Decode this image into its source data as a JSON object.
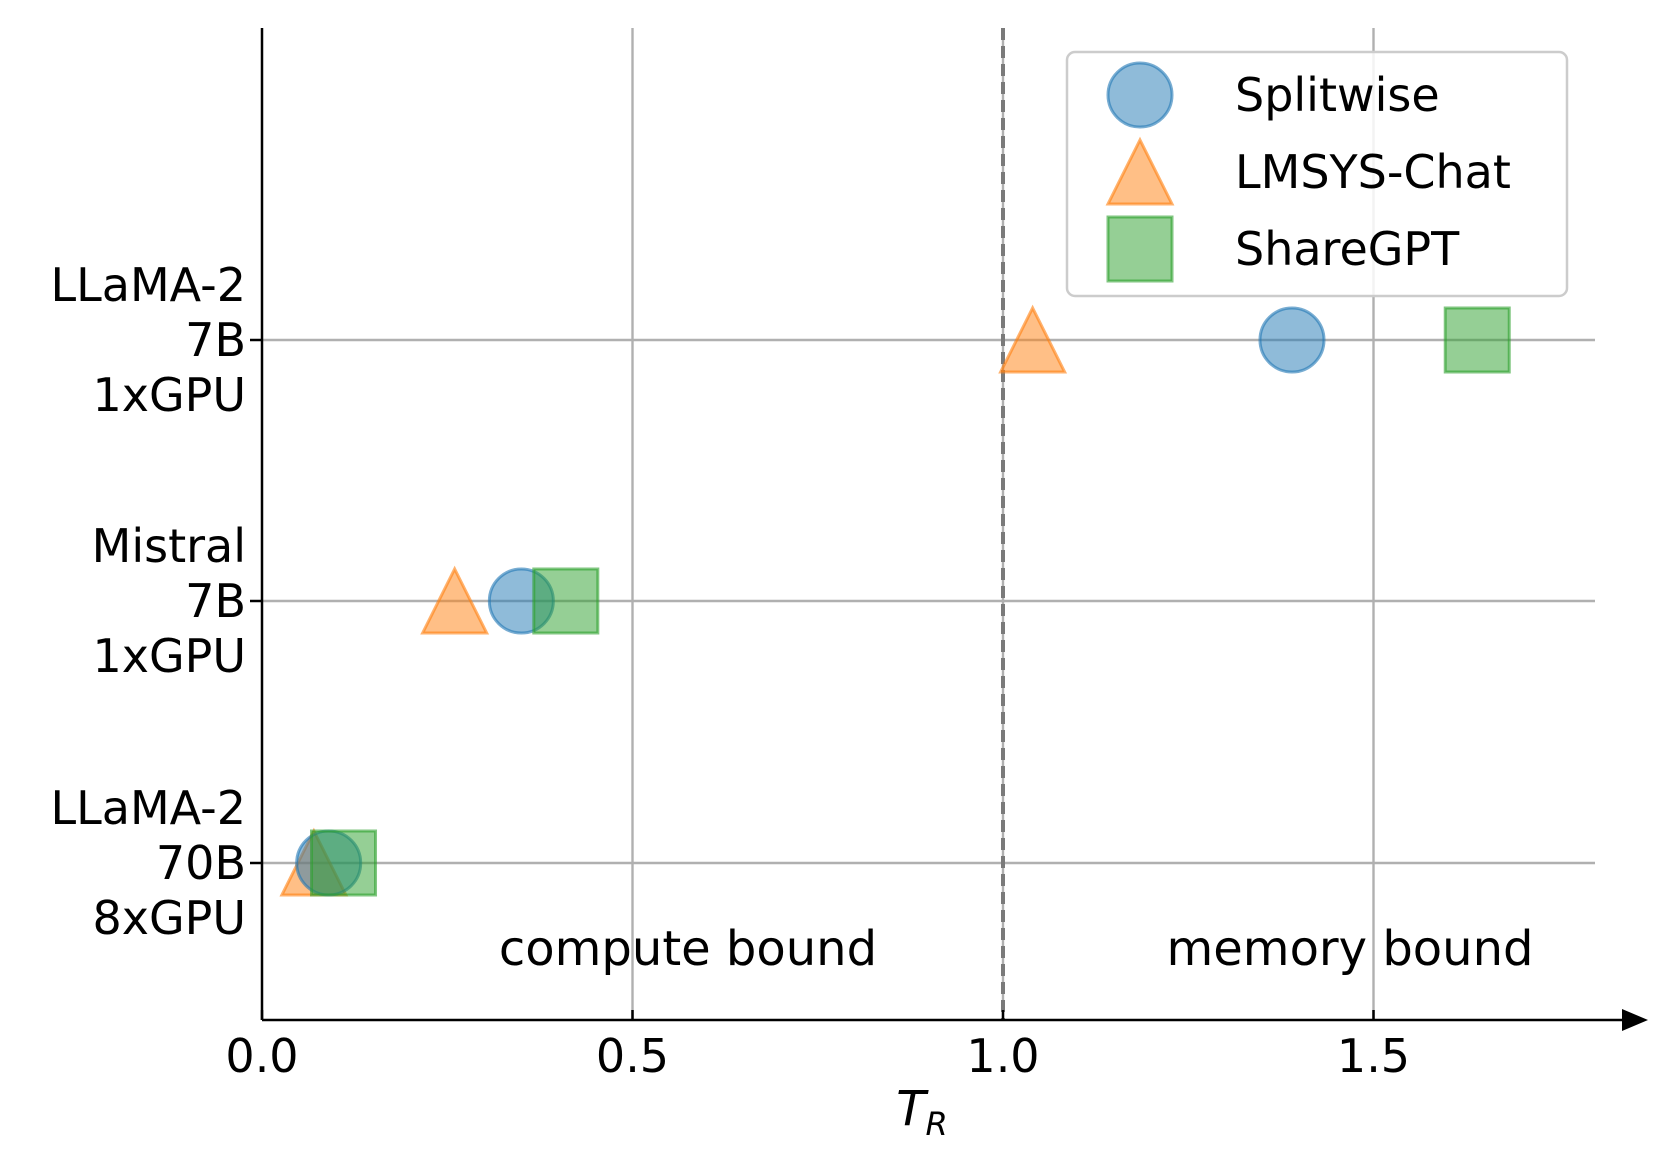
{
  "chart_data": {
    "type": "scatter",
    "xlabel": {
      "main": "T",
      "subscript": "R"
    },
    "ylabel": "",
    "xlim": [
      0,
      1.83
    ],
    "x_ticks": [
      "0.0",
      "0.5",
      "1.0",
      "1.5"
    ],
    "categories": [
      "LLaMA-2 70B 8xGPU",
      "Mistral 7B 1xGPU",
      "LLaMA-2 7B 1xGPU"
    ],
    "category_lines": [
      [
        "LLaMA-2",
        "70B",
        "8xGPU"
      ],
      [
        "Mistral",
        "7B",
        "1xGPU"
      ],
      [
        "LLaMA-2",
        "7B",
        "1xGPU"
      ]
    ],
    "series": [
      {
        "name": "Splitwise",
        "marker": "circle",
        "color": "#1f77b4",
        "values": [
          0.09,
          0.35,
          1.39
        ]
      },
      {
        "name": "LMSYS-Chat",
        "marker": "triangle",
        "color": "#ff7f0e",
        "values": [
          0.07,
          0.26,
          1.04
        ]
      },
      {
        "name": "ShareGPT",
        "marker": "square",
        "color": "#2ca02c",
        "values": [
          0.11,
          0.41,
          1.64
        ]
      }
    ],
    "threshold": {
      "x": 1.0,
      "style": "dashed"
    },
    "annotations": {
      "left": "compute bound",
      "right": "memory bound"
    },
    "grid": true,
    "legend_position": "top-right"
  }
}
